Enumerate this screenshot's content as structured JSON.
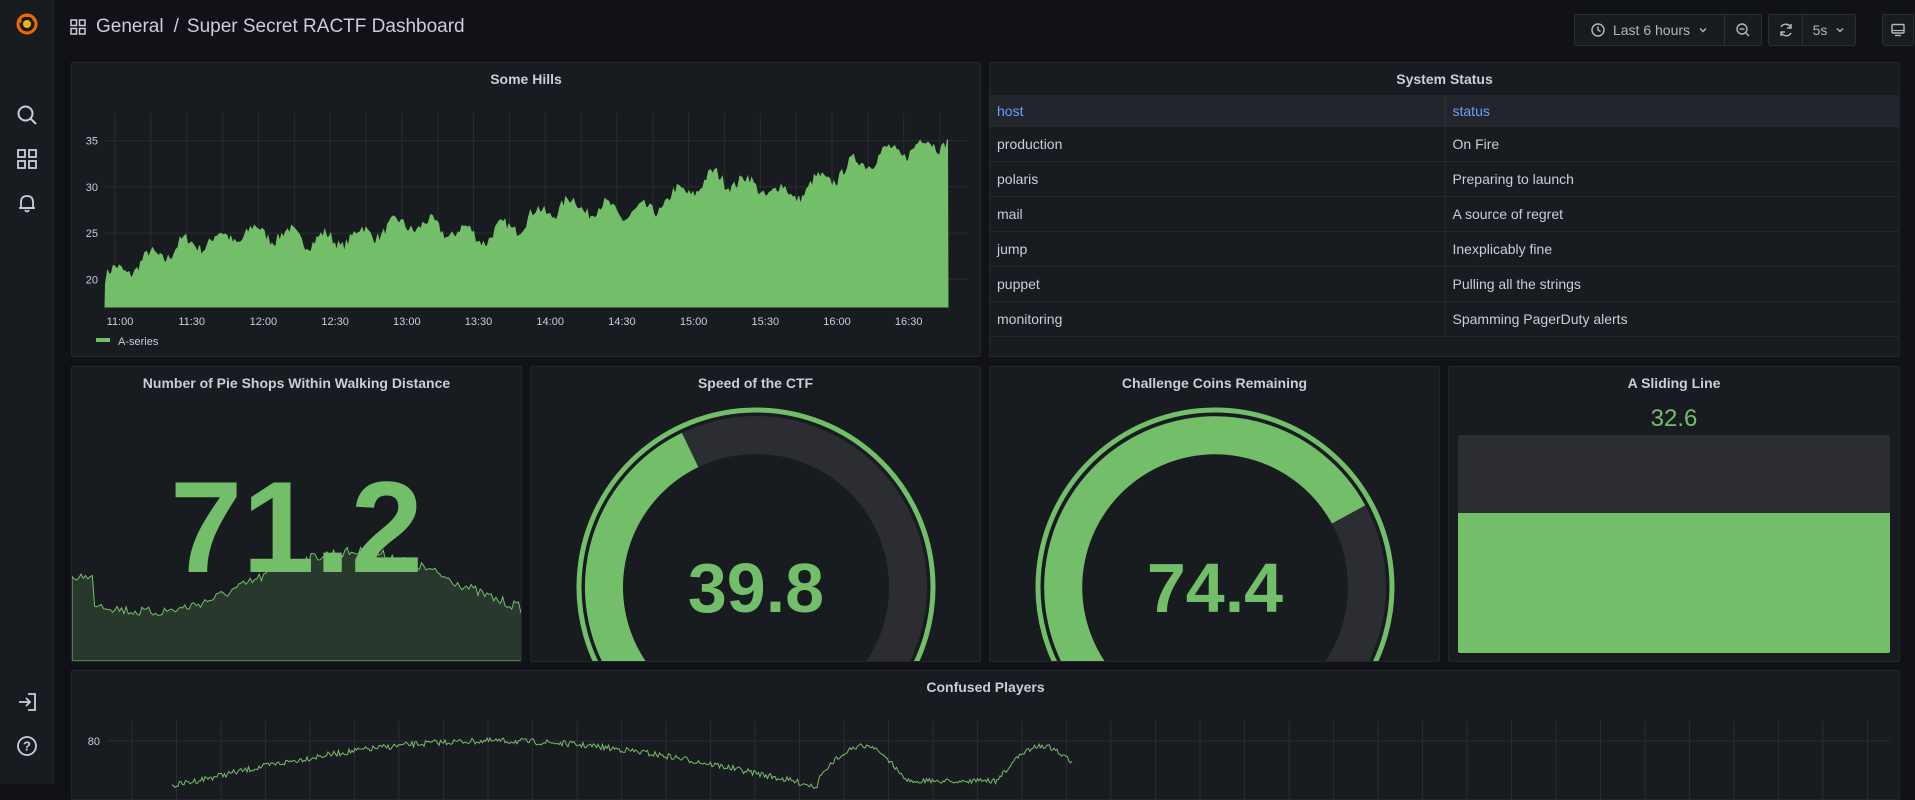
{
  "breadcrumb": {
    "folder": "General",
    "separator": "/",
    "dashboard": "Super Secret RACTF Dashboard"
  },
  "toolbar": {
    "time_range": "Last 6 hours",
    "refresh_interval": "5s"
  },
  "icons": [
    "grafana-logo-icon",
    "search-icon",
    "dashboards-icon",
    "alerting-bell-icon",
    "sign-in-icon",
    "help-icon",
    "clock-icon",
    "chevron-down-icon",
    "zoom-out-icon",
    "refresh-icon",
    "tv-mode-icon"
  ],
  "colors": {
    "accent_green": "#73bf69",
    "link_blue": "#6e9fff",
    "background": "#111217",
    "panel": "#181b1f"
  },
  "panels": {
    "hills": {
      "title": "Some Hills",
      "legend": "A-series"
    },
    "status": {
      "title": "System Status",
      "columns": [
        "host",
        "status"
      ],
      "rows": [
        {
          "host": "production",
          "status": "On Fire"
        },
        {
          "host": "polaris",
          "status": "Preparing to launch"
        },
        {
          "host": "mail",
          "status": "A source of regret"
        },
        {
          "host": "jump",
          "status": "Inexplicably fine"
        },
        {
          "host": "puppet",
          "status": "Pulling all the strings"
        },
        {
          "host": "monitoring",
          "status": "Spamming PagerDuty alerts"
        }
      ]
    },
    "pie": {
      "title": "Number of Pie Shops Within Walking Distance",
      "value": "71.2"
    },
    "speed": {
      "title": "Speed of the CTF",
      "value": "39.8"
    },
    "coins": {
      "title": "Challenge Coins Remaining",
      "value": "74.4"
    },
    "sliding": {
      "title": "A Sliding Line",
      "value": "32.6",
      "level": 0.64
    },
    "confused": {
      "title": "Confused Players"
    }
  },
  "chart_data": [
    {
      "type": "area",
      "title": "Some Hills",
      "x": [
        "11:00",
        "11:30",
        "12:00",
        "12:30",
        "13:00",
        "13:30",
        "14:00",
        "14:30",
        "15:00",
        "15:30",
        "16:00",
        "16:30"
      ],
      "series": [
        {
          "name": "A-series",
          "values": [
            20,
            23.5,
            25,
            24,
            26,
            24.5,
            28,
            27,
            31,
            29,
            33,
            35
          ]
        }
      ],
      "yticks": [
        20,
        25,
        30,
        35
      ],
      "ylim": [
        17,
        38
      ],
      "legend": "bottom-left"
    },
    {
      "type": "line",
      "title": "Confused Players",
      "yticks": [
        80
      ]
    }
  ],
  "gauges": {
    "speed": {
      "value": 39.8,
      "min": 0,
      "max": 100
    },
    "coins": {
      "value": 74.4,
      "min": 0,
      "max": 100
    }
  }
}
